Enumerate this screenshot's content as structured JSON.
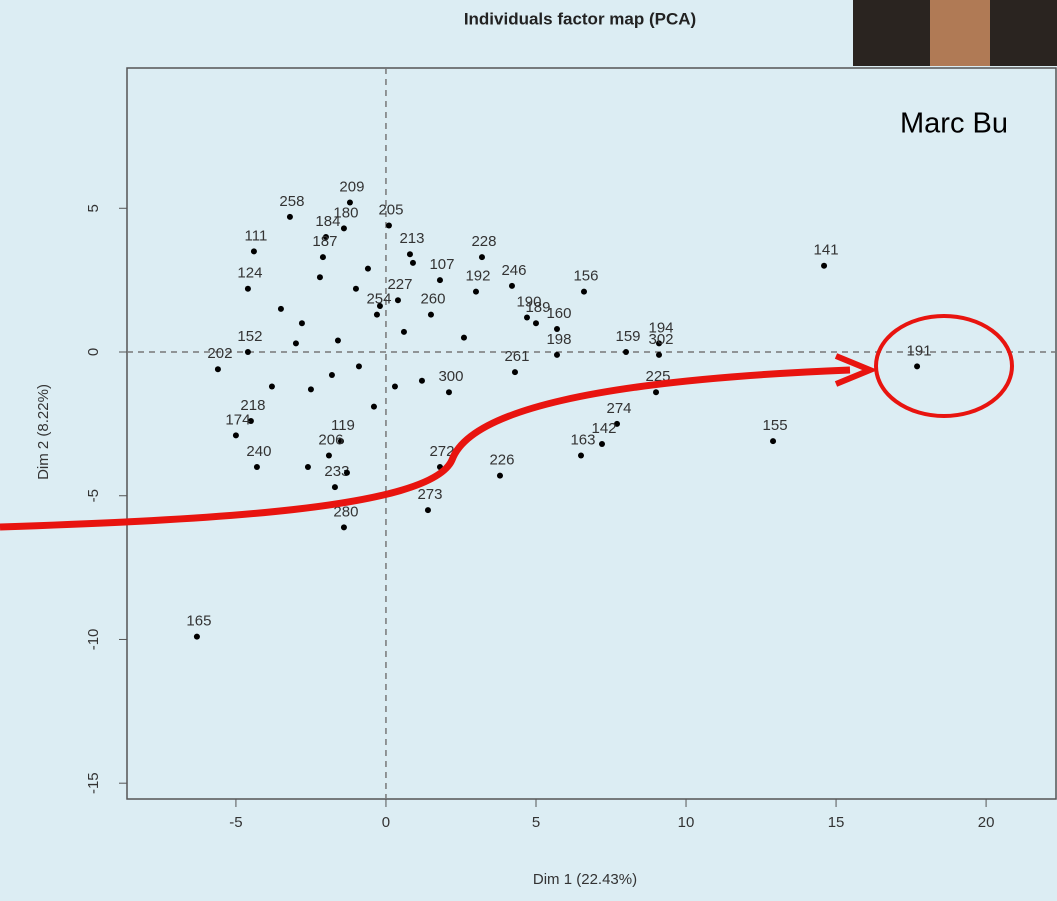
{
  "chart_data": {
    "type": "scatter",
    "title": "Individuals factor map (PCA)",
    "xlabel": "Dim 1 (22.43%)",
    "ylabel": "Dim 2 (8.22%)",
    "labels": [
      "258",
      "209",
      "205",
      "180",
      "184",
      "187",
      "111",
      "213",
      "228",
      "141",
      "156",
      "246",
      "192",
      "107",
      "124",
      "227",
      "260",
      "254",
      "190",
      "189",
      "160",
      "159",
      "194",
      "198",
      "261",
      "191",
      "302",
      "225",
      "274",
      "142",
      "163",
      "155",
      "226",
      "272",
      "273",
      "280",
      "233",
      "300",
      "165",
      "202",
      "152",
      "218",
      "174",
      "240",
      "119",
      "206",
      null,
      null,
      null,
      null,
      null,
      null,
      null,
      null,
      null,
      null,
      null,
      null,
      null,
      null,
      null,
      null,
      null,
      null,
      null,
      null
    ],
    "x": [
      -3.2,
      -1.2,
      0.1,
      -1.4,
      -2.0,
      -2.1,
      -4.4,
      0.8,
      3.2,
      14.6,
      6.6,
      4.2,
      3.0,
      1.8,
      -4.6,
      0.4,
      1.5,
      -0.3,
      4.7,
      5.0,
      5.7,
      8.0,
      9.1,
      5.7,
      4.3,
      17.7,
      9.1,
      9.0,
      7.7,
      7.2,
      6.5,
      12.9,
      3.8,
      1.8,
      1.4,
      -1.4,
      -1.7,
      2.1,
      -6.3,
      -5.6,
      -4.6,
      -4.5,
      -5.0,
      -4.3,
      -1.5,
      -1.9,
      -3.5,
      -2.8,
      -2.2,
      -1.6,
      -0.9,
      -0.2,
      0.6,
      1.2,
      -3.0,
      -2.5,
      -1.8,
      -1.0,
      -0.4,
      0.3,
      -3.8,
      -2.6,
      -1.3,
      -0.6,
      0.9,
      2.6
    ],
    "y": [
      4.7,
      5.2,
      4.4,
      4.3,
      4.0,
      3.3,
      3.5,
      3.4,
      3.3,
      3.0,
      2.1,
      2.3,
      2.1,
      2.5,
      2.2,
      1.8,
      1.3,
      1.3,
      1.2,
      1.0,
      0.8,
      0.0,
      0.3,
      -0.1,
      -0.7,
      -0.5,
      -0.1,
      -1.4,
      -2.5,
      -3.2,
      -3.6,
      -3.1,
      -4.3,
      -4.0,
      -5.5,
      -6.1,
      -4.7,
      -1.4,
      -9.9,
      -0.6,
      0.0,
      -2.4,
      -2.9,
      -4.0,
      -3.1,
      -3.6,
      1.5,
      1.0,
      2.6,
      0.4,
      -0.5,
      1.6,
      0.7,
      -1.0,
      0.3,
      -1.3,
      -0.8,
      2.2,
      -1.9,
      -1.2,
      -1.2,
      -4.0,
      -4.2,
      2.9,
      3.1,
      0.5
    ],
    "xlim": [
      -8.63,
      22.33
    ],
    "ylim": [
      -15.55,
      9.88
    ],
    "xticks": [
      -5,
      0,
      5,
      10,
      15,
      20
    ],
    "yticks": [
      5,
      0,
      -5,
      -10,
      -15
    ],
    "reference_lines": {
      "x": 0,
      "y": 0
    },
    "color": "#000000"
  },
  "overlay": {
    "speaker_name": "Marc Bu"
  }
}
